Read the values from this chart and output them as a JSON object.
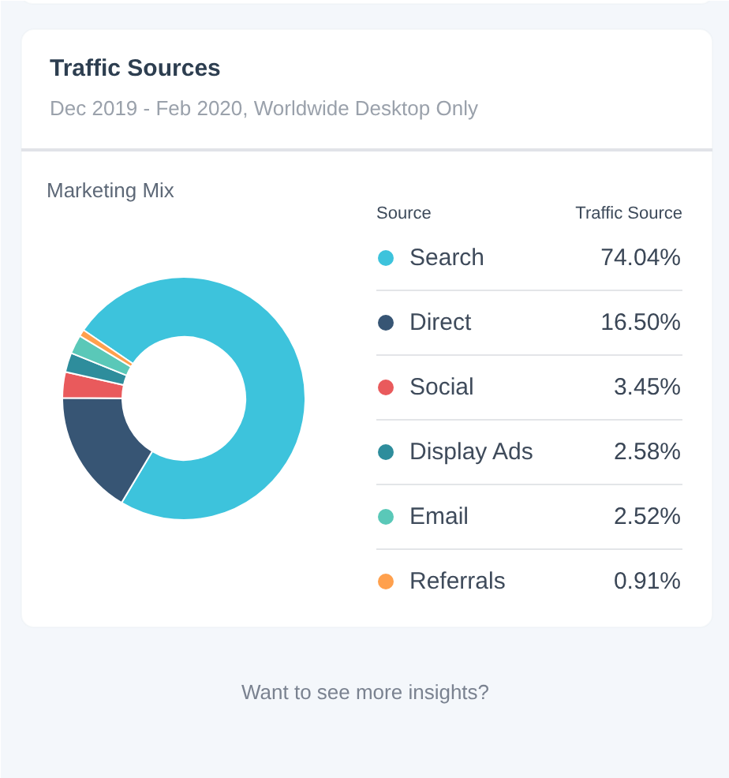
{
  "chart_data": {
    "type": "donut",
    "title": "Traffic Sources",
    "subtitle": "Dec 2019 - Feb 2020, Worldwide Desktop Only",
    "categories": [
      "Search",
      "Direct",
      "Social",
      "Display Ads",
      "Email",
      "Referrals"
    ],
    "values": [
      74.04,
      16.5,
      3.45,
      2.58,
      2.52,
      0.91
    ],
    "colors": [
      "#3dc3dc",
      "#375574",
      "#e95a5c",
      "#2e8d9c",
      "#5ac8b8",
      "#ffa04d"
    ],
    "value_labels": [
      "74.04%",
      "16.50%",
      "3.45%",
      "2.58%",
      "2.52%",
      "0.91%"
    ],
    "legend": "right",
    "legend_title": "Source",
    "annotations": [
      "Marketing Mix",
      "Traffic Source",
      "Want to see more insights?"
    ]
  }
}
